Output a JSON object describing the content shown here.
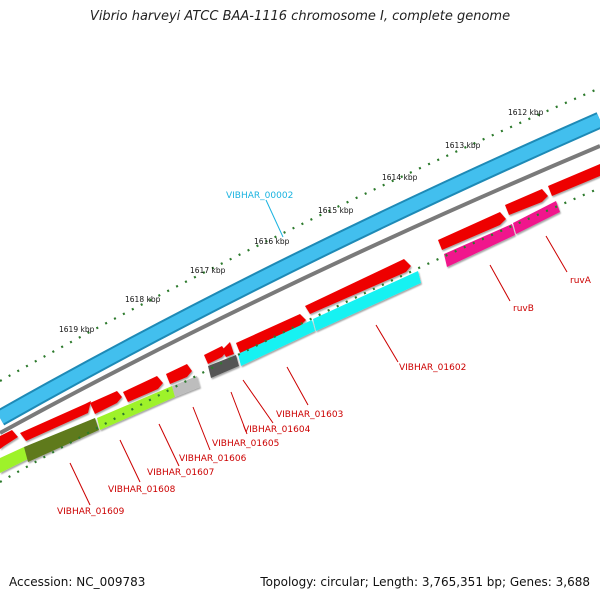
{
  "title": "Vibrio harveyi ATCC BAA-1116 chromosome I, complete genome",
  "accession": "Accession: NC_009783",
  "topology": "Topology: circular; Length: 3,765,351 bp; Genes: 3,688",
  "colors": {
    "backbone": "#42bfee",
    "backbone_edge": "#1e8ab6",
    "gene_red": "#ee0000",
    "gene_magenta": "#f0148c",
    "gene_cyan": "#17f2f2",
    "gene_lime": "#9ef22c",
    "gene_olive": "#5e7a1e",
    "gene_gray": "#bdbdbd",
    "gene_darkgray": "#555555",
    "label_red": "#cc0000",
    "label_blue": "#1ab3e0",
    "tick_green": "#2c7a2c"
  },
  "kbp_ticks": [
    "1612 kbp",
    "1613 kbp",
    "1614 kbp",
    "1615 kbp",
    "1616 kbp",
    "1617 kbp",
    "1618 kbp",
    "1619 kbp"
  ],
  "gene_labels": {
    "vibhar_00002": "VIBHAR_00002",
    "ruva": "ruvA",
    "ruvb": "ruvB",
    "vibhar_01602": "VIBHAR_01602",
    "vibhar_01603": "VIBHAR_01603",
    "vibhar_01604": "VIBHAR_01604",
    "vibhar_01605": "VIBHAR_01605",
    "vibhar_01606": "VIBHAR_01606",
    "vibhar_01607": "VIBHAR_01607",
    "vibhar_01608": "VIBHAR_01608",
    "vibhar_01609": "VIBHAR_01609"
  }
}
